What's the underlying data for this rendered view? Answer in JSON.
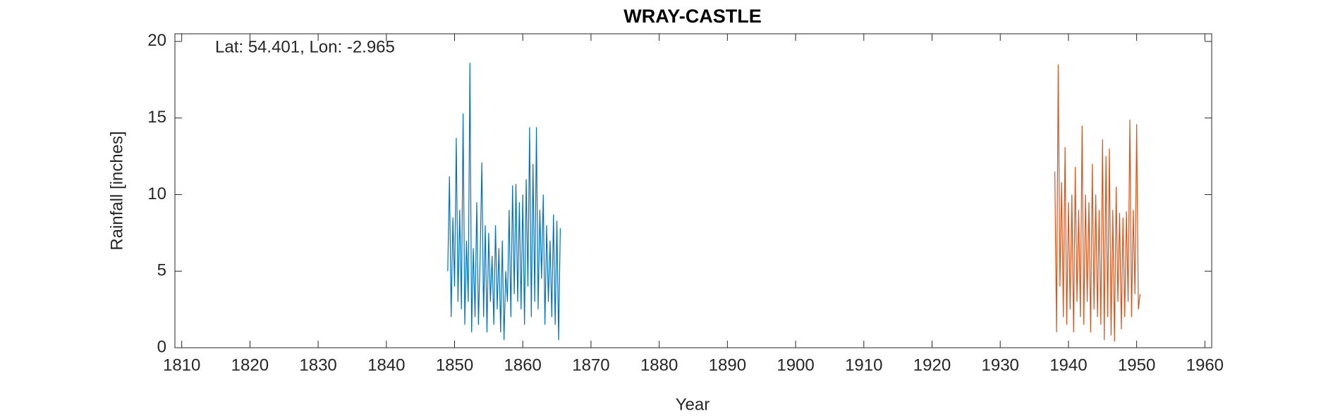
{
  "chart_data": {
    "type": "line",
    "title": "WRAY-CASTLE",
    "annotation": "Lat: 54.401, Lon: -2.965",
    "xlabel": "Year",
    "ylabel": "Rainfall [inches]",
    "xlim": [
      1809,
      1961
    ],
    "ylim": [
      0,
      20.5
    ],
    "xticks": [
      1810,
      1820,
      1830,
      1840,
      1850,
      1860,
      1870,
      1880,
      1890,
      1900,
      1910,
      1920,
      1930,
      1940,
      1950,
      1960
    ],
    "yticks": [
      0,
      5,
      10,
      15,
      20
    ],
    "series": [
      {
        "color": "#0072BD",
        "x": [
          1849,
          1849.25,
          1849.5,
          1849.75,
          1850,
          1850.25,
          1850.5,
          1850.75,
          1851,
          1851.25,
          1851.5,
          1851.75,
          1852,
          1852.25,
          1852.5,
          1852.75,
          1853,
          1853.25,
          1853.5,
          1853.75,
          1854,
          1854.25,
          1854.5,
          1854.75,
          1855,
          1855.25,
          1855.5,
          1855.75,
          1856,
          1856.25,
          1856.5,
          1856.75,
          1857,
          1857.25,
          1857.5,
          1857.75,
          1858,
          1858.25,
          1858.5,
          1858.75,
          1859,
          1859.25,
          1859.5,
          1859.75,
          1860,
          1860.25,
          1860.5,
          1860.75,
          1861,
          1861.25,
          1861.5,
          1861.75,
          1862,
          1862.25,
          1862.5,
          1862.75,
          1863,
          1863.25,
          1863.5,
          1863.75,
          1864,
          1864.25,
          1864.5,
          1864.75,
          1865,
          1865.25,
          1865.5
        ],
        "values": [
          5.0,
          11.2,
          2.0,
          8.5,
          4.0,
          13.7,
          3.0,
          9.0,
          2.5,
          15.3,
          1.5,
          7.0,
          3.0,
          18.6,
          1.0,
          6.5,
          2.0,
          9.5,
          1.5,
          6.0,
          12.1,
          2.0,
          8.0,
          1.0,
          7.5,
          3.0,
          6.0,
          1.5,
          8.0,
          2.5,
          6.5,
          1.0,
          7.0,
          0.5,
          5.0,
          3.0,
          9.0,
          2.0,
          10.6,
          3.5,
          10.7,
          3.0,
          9.5,
          2.5,
          10.0,
          1.5,
          11.0,
          4.0,
          14.4,
          2.0,
          12.0,
          3.0,
          14.4,
          2.5,
          9.0,
          4.5,
          10.0,
          1.5,
          8.0,
          3.0,
          7.0,
          2.0,
          8.7,
          1.5,
          8.3,
          0.5,
          7.8
        ]
      },
      {
        "color": "#D95319",
        "x": [
          1938,
          1938.25,
          1938.5,
          1938.75,
          1939,
          1939.25,
          1939.5,
          1939.75,
          1940,
          1940.25,
          1940.5,
          1940.75,
          1941,
          1941.25,
          1941.5,
          1941.75,
          1942,
          1942.25,
          1942.5,
          1942.75,
          1943,
          1943.25,
          1943.5,
          1943.75,
          1944,
          1944.25,
          1944.5,
          1944.75,
          1945,
          1945.25,
          1945.5,
          1945.75,
          1946,
          1946.25,
          1946.5,
          1946.75,
          1947,
          1947.25,
          1947.5,
          1947.75,
          1948,
          1948.25,
          1948.5,
          1948.75,
          1949,
          1949.25,
          1949.5,
          1949.75,
          1950,
          1950.25,
          1950.5
        ],
        "values": [
          11.5,
          1.0,
          18.5,
          4.0,
          10.8,
          2.0,
          13.1,
          1.5,
          9.5,
          2.5,
          10.0,
          1.0,
          11.8,
          3.0,
          9.0,
          2.0,
          14.5,
          1.5,
          10.0,
          3.0,
          9.5,
          1.0,
          12.0,
          2.5,
          10.0,
          2.0,
          9.0,
          1.5,
          13.6,
          0.5,
          12.5,
          2.0,
          13.0,
          0.8,
          9.0,
          0.4,
          10.5,
          3.0,
          8.8,
          1.2,
          8.5,
          2.0,
          8.9,
          3.0,
          14.9,
          2.0,
          9.0,
          3.5,
          14.6,
          2.5,
          3.5
        ]
      }
    ]
  }
}
